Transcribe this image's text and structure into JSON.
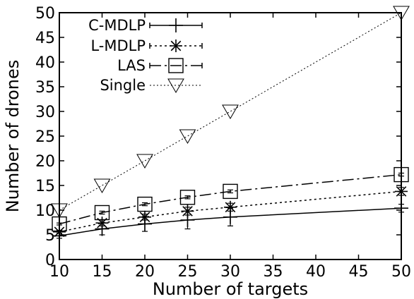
{
  "chart_data": {
    "type": "line",
    "xlabel": "Number of targets",
    "ylabel": "Number of drones",
    "xlim": [
      10,
      50
    ],
    "ylim": [
      0,
      50
    ],
    "xticks": [
      "10",
      "15",
      "20",
      "25",
      "30",
      "35",
      "40",
      "45",
      "50"
    ],
    "yticks": [
      "0",
      "5",
      "10",
      "15",
      "20",
      "25",
      "30",
      "35",
      "40",
      "45",
      "50"
    ],
    "grid": false,
    "legend_position": "top-left",
    "x": [
      10,
      15,
      20,
      25,
      30,
      50
    ],
    "series": [
      {
        "name": "C-MDLP",
        "marker": "plus",
        "dash": "solid",
        "values": [
          4.8,
          6.2,
          7.2,
          8.0,
          8.6,
          10.4
        ],
        "errors": [
          0.5,
          1.2,
          1.5,
          1.8,
          1.8,
          0.8
        ]
      },
      {
        "name": "L-MDLP",
        "marker": "asterisk",
        "dash": "dotted",
        "values": [
          5.6,
          7.4,
          8.6,
          9.8,
          10.6,
          13.8
        ],
        "errors": [
          0.3,
          0.6,
          0.6,
          0.8,
          0.8,
          0.8
        ]
      },
      {
        "name": "LAS",
        "marker": "square",
        "dash": "dashdot",
        "values": [
          7.2,
          9.5,
          11.2,
          12.6,
          13.8,
          17.2
        ],
        "errors": [
          0.2,
          0.3,
          0.3,
          0.3,
          0.3,
          0.3
        ]
      },
      {
        "name": "Single",
        "marker": "triangle-down",
        "dash": "finedot",
        "values": [
          10,
          15,
          20,
          25,
          30,
          50
        ],
        "errors": [
          0,
          0,
          0,
          0,
          0,
          0
        ]
      }
    ]
  }
}
